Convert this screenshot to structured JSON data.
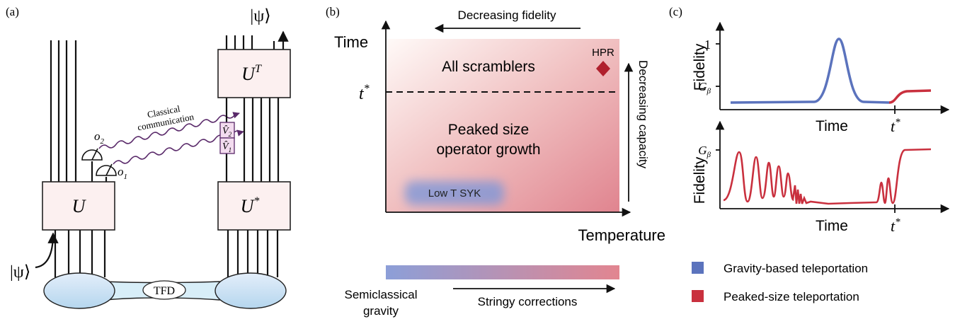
{
  "panel_a": {
    "label": "(a)",
    "output_state": "|ψ⟩",
    "input_state": "|ψ⟩",
    "box_top": {
      "base": "U",
      "sup": "T"
    },
    "box_left": "U",
    "box_bottom": {
      "base": "U",
      "sup": "*"
    },
    "channel_label": [
      "Classical",
      "communication"
    ],
    "measurements": [
      {
        "base": "o",
        "sub": "2"
      },
      {
        "base": "o",
        "sub": "1"
      }
    ],
    "decoders": [
      {
        "base": "V̂",
        "sub": "2"
      },
      {
        "base": "V̂",
        "sub": "1"
      }
    ],
    "tfd": "TFD"
  },
  "panel_b": {
    "label": "(b)",
    "top_arrow": "Decreasing fidelity",
    "y_axis": "Time",
    "threshold": {
      "base": "t",
      "sup": "*"
    },
    "region_top": "All scramblers",
    "marker": "HPR",
    "region_bottom": [
      "Peaked size",
      "operator growth"
    ],
    "right_arrow": "Decreasing capacity",
    "blob": "Low T SYK",
    "x_axis": "Temperature",
    "bar_left": [
      "Semiclassical",
      "gravity"
    ],
    "bar_arrow": "Stringy corrections"
  },
  "panel_c": {
    "label": "(c)",
    "top": {
      "y_axis": "Fidelity",
      "ytick_high": "1",
      "ytick_low": {
        "base": "G",
        "sub": "β"
      },
      "x_axis": "Time",
      "xtick": {
        "base": "t",
        "sup": "*"
      }
    },
    "bottom": {
      "y_axis": "Fidelity",
      "ytick_low": {
        "base": "G",
        "sub": "β"
      },
      "x_axis": "Time",
      "xtick": {
        "base": "t",
        "sup": "*"
      }
    },
    "legend": [
      {
        "name": "Gravity-based teleportation",
        "color": "#5b73bd"
      },
      {
        "name": "Peaked-size teleportation",
        "color": "#c9303e"
      }
    ]
  }
}
